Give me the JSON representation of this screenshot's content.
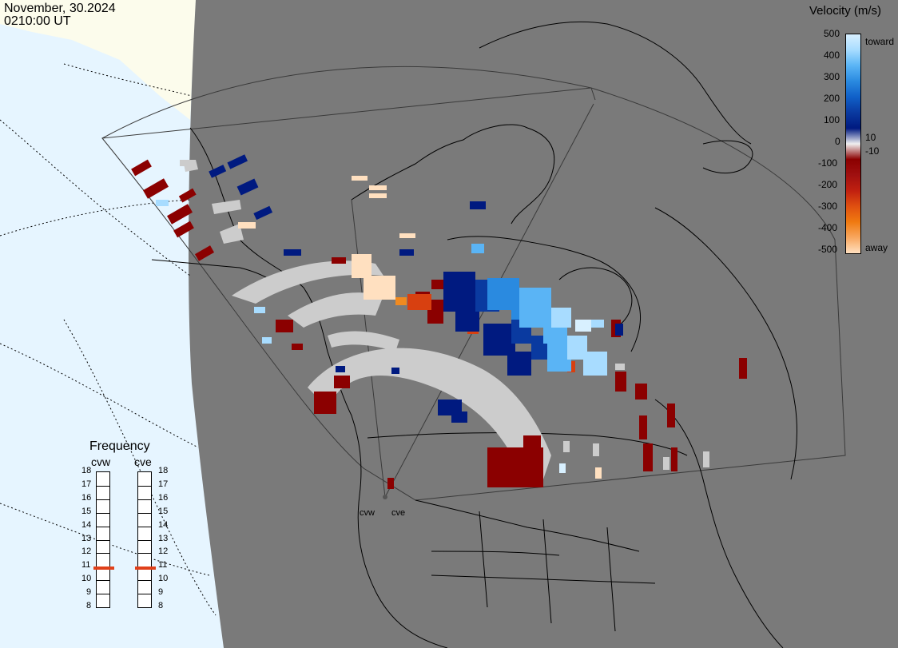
{
  "header": {
    "date": "November, 30.2024",
    "time": "0210:00 UT"
  },
  "colors": {
    "ocean": "#e6f5ff",
    "land_outside": "#fcfcec",
    "map_bg": "#7a7a7a",
    "ground_scatter": "#cccccc",
    "freq_marker": "#e0401a",
    "coast_line": "#000000"
  },
  "velocity_scale": {
    "title": "Velocity (m/s)",
    "ticks": [
      "500",
      "400",
      "300",
      "200",
      "100",
      "0",
      "-100",
      "-200",
      "-300",
      "-400",
      "-500"
    ],
    "near_zero_pos": "10",
    "near_zero_neg": "-10",
    "end_toward": "toward",
    "end_away": "away",
    "colors": [
      "#d8f0ff",
      "#a8dcff",
      "#5ab4f5",
      "#2a8ae0",
      "#1060c8",
      "#0a3aa0",
      "#001a80",
      "#f0f0f0",
      "#8b0000",
      "#a01010",
      "#c02010",
      "#e05010",
      "#f07a10",
      "#f8a860",
      "#ffe0c0"
    ]
  },
  "frequency": {
    "title": "Frequency",
    "radars": [
      {
        "name": "cvw",
        "value_mhz": 10.9
      },
      {
        "name": "cve",
        "value_mhz": 10.9
      }
    ],
    "ticks": [
      "18",
      "17",
      "16",
      "15",
      "14",
      "13",
      "12",
      "11",
      "10",
      "9",
      "8"
    ]
  },
  "radar_labels": [
    "cvw",
    "cve"
  ]
}
